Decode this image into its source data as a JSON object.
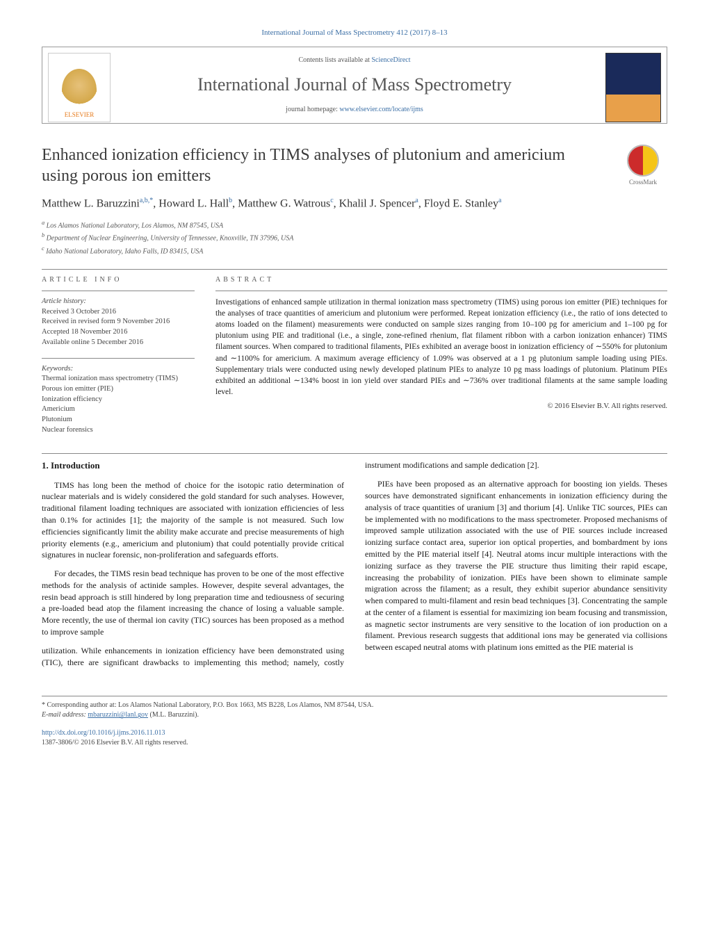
{
  "journal_ref": "International Journal of Mass Spectrometry 412 (2017) 8–13",
  "header": {
    "contents_prefix": "Contents lists available at ",
    "contents_link": "ScienceDirect",
    "journal_name": "International Journal of Mass Spectrometry",
    "homepage_prefix": "journal homepage: ",
    "homepage_link": "www.elsevier.com/locate/ijms",
    "publisher": "ELSEVIER"
  },
  "article": {
    "title": "Enhanced ionization efficiency in TIMS analyses of plutonium and americium using porous ion emitters",
    "crossmark_label": "CrossMark",
    "authors_html": "Matthew L. Baruzzini",
    "authors": [
      {
        "name": "Matthew L. Baruzzini",
        "marks": "a,b,*"
      },
      {
        "name": "Howard L. Hall",
        "marks": "b"
      },
      {
        "name": "Matthew G. Watrous",
        "marks": "c"
      },
      {
        "name": "Khalil J. Spencer",
        "marks": "a"
      },
      {
        "name": "Floyd E. Stanley",
        "marks": "a"
      }
    ],
    "affiliations": {
      "a": "Los Alamos National Laboratory, Los Alamos, NM 87545, USA",
      "b": "Department of Nuclear Engineering, University of Tennessee, Knoxville, TN 37996, USA",
      "c": "Idaho National Laboratory, Idaho Falls, ID 83415, USA"
    }
  },
  "info": {
    "label": "article info",
    "history_label": "Article history:",
    "received": "Received 3 October 2016",
    "revised": "Received in revised form 9 November 2016",
    "accepted": "Accepted 18 November 2016",
    "online": "Available online 5 December 2016",
    "keywords_label": "Keywords:",
    "keywords": [
      "Thermal ionization mass spectrometry (TIMS)",
      "Porous ion emitter (PIE)",
      "Ionization efficiency",
      "Americium",
      "Plutonium",
      "Nuclear forensics"
    ]
  },
  "abstract": {
    "label": "abstract",
    "text": "Investigations of enhanced sample utilization in thermal ionization mass spectrometry (TIMS) using porous ion emitter (PIE) techniques for the analyses of trace quantities of americium and plutonium were performed. Repeat ionization efficiency (i.e., the ratio of ions detected to atoms loaded on the filament) measurements were conducted on sample sizes ranging from 10–100 pg for americium and 1–100 pg for plutonium using PIE and traditional (i.e., a single, zone-refined rhenium, flat filament ribbon with a carbon ionization enhancer) TIMS filament sources. When compared to traditional filaments, PIEs exhibited an average boost in ionization efficiency of ∼550% for plutonium and ∼1100% for americium. A maximum average efficiency of 1.09% was observed at a 1 pg plutonium sample loading using PIEs. Supplementary trials were conducted using newly developed platinum PIEs to analyze 10 pg mass loadings of plutonium. Platinum PIEs exhibited an additional ∼134% boost in ion yield over standard PIEs and ∼736% over traditional filaments at the same sample loading level.",
    "copyright": "© 2016 Elsevier B.V. All rights reserved."
  },
  "body": {
    "intro_heading": "1. Introduction",
    "p1": "TIMS has long been the method of choice for the isotopic ratio determination of nuclear materials and is widely considered the gold standard for such analyses. However, traditional filament loading techniques are associated with ionization efficiencies of less than 0.1% for actinides [1]; the majority of the sample is not measured. Such low efficiencies significantly limit the ability make accurate and precise measurements of high priority elements (e.g., americium and plutonium) that could potentially provide critical signatures in nuclear forensic, non-proliferation and safeguards efforts.",
    "p2": "For decades, the TIMS resin bead technique has proven to be one of the most effective methods for the analysis of actinide samples. However, despite several advantages, the resin bead approach is still hindered by long preparation time and tediousness of securing a pre-loaded bead atop the filament increasing the chance of losing a valuable sample. More recently, the use of thermal ion cavity (TIC) sources has been proposed as a method to improve sample",
    "p3": "utilization. While enhancements in ionization efficiency have been demonstrated using (TIC), there are significant drawbacks to implementing this method; namely, costly instrument modifications and sample dedication [2].",
    "p4": "PIEs have been proposed as an alternative approach for boosting ion yields. Theses sources have demonstrated significant enhancements in ionization efficiency during the analysis of trace quantities of uranium [3] and thorium [4]. Unlike TIC sources, PIEs can be implemented with no modifications to the mass spectrometer. Proposed mechanisms of improved sample utilization associated with the use of PIE sources include increased ionizing surface contact area, superior ion optical properties, and bombardment by ions emitted by the PIE material itself [4]. Neutral atoms incur multiple interactions with the ionizing surface as they traverse the PIE structure thus limiting their rapid escape, increasing the probability of ionization. PIEs have been shown to eliminate sample migration across the filament; as a result, they exhibit superior abundance sensitivity when compared to multi-filament and resin bead techniques [3]. Concentrating the sample at the center of a filament is essential for maximizing ion beam focusing and transmission, as magnetic sector instruments are very sensitive to the location of ion production on a filament. Previous research suggests that additional ions may be generated via collisions between escaped neutral atoms with platinum ions emitted as the PIE material is"
  },
  "footnotes": {
    "corr": "* Corresponding author at: Los Alamos National Laboratory, P.O. Box 1663, MS B228, Los Alamos, NM 87544, USA.",
    "email_label": "E-mail address: ",
    "email": "mbaruzzini@lanl.gov",
    "email_author": " (M.L. Baruzzini)."
  },
  "footer": {
    "doi": "http://dx.doi.org/10.1016/j.ijms.2016.11.013",
    "issn_line": "1387-3806/© 2016 Elsevier B.V. All rights reserved."
  },
  "colors": {
    "link": "#3a6ea5",
    "text": "#1a1a1a",
    "accent_orange": "#e67817"
  }
}
